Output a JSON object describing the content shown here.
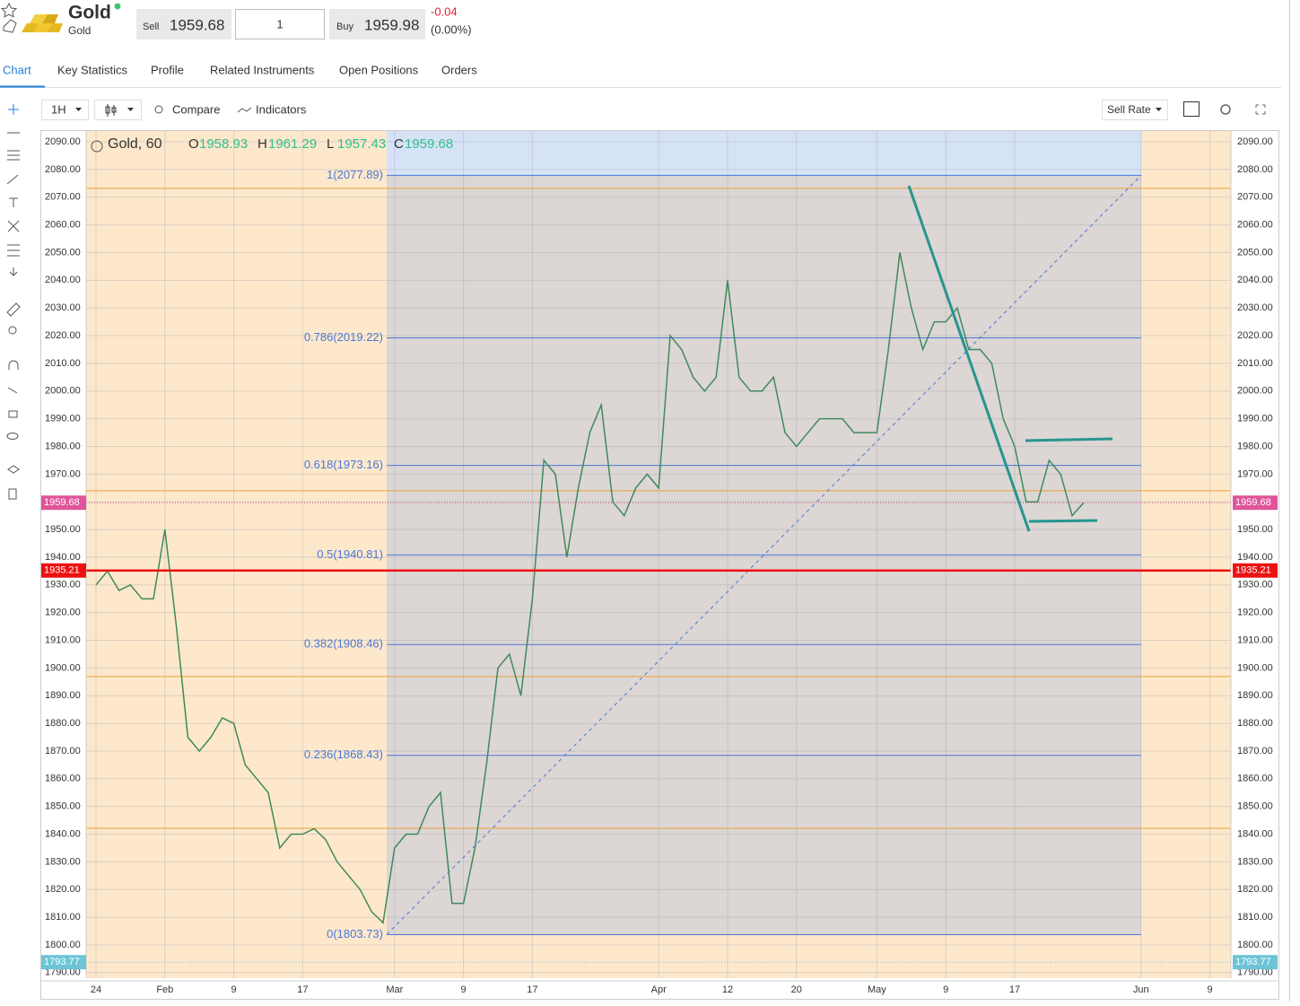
{
  "header": {
    "title": "Gold",
    "subtitle": "Gold",
    "sell_label": "Sell",
    "sell": 1959.68,
    "quantity": 1,
    "buy_label": "Buy",
    "buy": 1959.98,
    "change": -0.04,
    "change_pct": "(0.00%)"
  },
  "tabs": [
    "Chart",
    "Key Statistics",
    "Profile",
    "Related Instruments",
    "Open Positions",
    "Orders"
  ],
  "toolbar": {
    "interval": "1H",
    "compare": "Compare",
    "indicators": "Indicators",
    "rate": "Sell Rate"
  },
  "chart_data": {
    "type": "line",
    "legend": {
      "name": "Gold, 60",
      "fields": [
        {
          "key": "O",
          "value": 1958.93
        },
        {
          "key": "H",
          "value": 1961.29
        },
        {
          "key": "L",
          "value": 1957.43
        },
        {
          "key": "C",
          "value": 1959.68
        }
      ]
    },
    "categories": [
      "24",
      null,
      null,
      null,
      null,
      null,
      "Feb",
      null,
      null,
      null,
      null,
      null,
      "9",
      null,
      null,
      null,
      null,
      null,
      "17",
      null,
      null,
      null,
      null,
      null,
      null,
      null,
      "Mar",
      null,
      null,
      null,
      null,
      null,
      "9",
      null,
      null,
      null,
      null,
      null,
      "17",
      null,
      null,
      null,
      null,
      null,
      null,
      null,
      null,
      null,
      null,
      "Apr",
      null,
      null,
      null,
      null,
      null,
      "12",
      null,
      null,
      null,
      null,
      null,
      "20",
      null,
      null,
      null,
      null,
      null,
      null,
      "May",
      null,
      null,
      null,
      null,
      null,
      "9",
      null,
      null,
      null,
      null,
      null,
      "17",
      null,
      null,
      null,
      null,
      null,
      null,
      null,
      null,
      null,
      null,
      "Jun",
      null,
      null,
      null,
      null,
      null,
      "9",
      null
    ],
    "series": [
      {
        "name": "Gold",
        "color": "#3f8a5c",
        "values": [
          1930,
          1935,
          1928,
          1930,
          1925,
          1925,
          1950,
          1915,
          1875,
          1870,
          1875,
          1882,
          1880,
          1865,
          1860,
          1855,
          1835,
          1840,
          1840,
          1842,
          1838,
          1830,
          1825,
          1820,
          1812,
          1808,
          1835,
          1840,
          1840,
          1850,
          1855,
          1815,
          1815,
          1835,
          1865,
          1900,
          1905,
          1890,
          1925,
          1975,
          1970,
          1940,
          1965,
          1985,
          1995,
          1960,
          1955,
          1965,
          1970,
          1965,
          2020,
          2015,
          2005,
          2000,
          2005,
          2040,
          2005,
          2000,
          2000,
          2005,
          1985,
          1980,
          1985,
          1990,
          1990,
          1990,
          1985,
          1985,
          1985,
          2015,
          2050,
          2030,
          2015,
          2025,
          2025,
          2030,
          2015,
          2015,
          2010,
          1990,
          1980,
          1960,
          1960,
          1975,
          1970,
          1955,
          1959.68,
          null,
          null,
          null,
          null,
          null,
          null,
          null,
          null,
          null,
          null,
          null,
          null
        ]
      }
    ],
    "ylim": [
      1788,
      2093.9
    ],
    "yticks": [
      {
        "value": 1790,
        "label": "1790.00"
      },
      {
        "value": 1800,
        "label": "1800.00"
      },
      {
        "value": 1810,
        "label": "1810.00"
      },
      {
        "value": 1820,
        "label": "1820.00"
      },
      {
        "value": 1830,
        "label": "1830.00"
      },
      {
        "value": 1840,
        "label": "1840.00"
      },
      {
        "value": 1850,
        "label": "1850.00"
      },
      {
        "value": 1860,
        "label": "1860.00"
      },
      {
        "value": 1870,
        "label": "1870.00"
      },
      {
        "value": 1880,
        "label": "1880.00"
      },
      {
        "value": 1890,
        "label": "1890.00"
      },
      {
        "value": 1900,
        "label": "1900.00"
      },
      {
        "value": 1910,
        "label": "1910.00"
      },
      {
        "value": 1920,
        "label": "1920.00"
      },
      {
        "value": 1930,
        "label": "1930.00"
      },
      {
        "value": 1940,
        "label": "1940.00"
      },
      {
        "value": 1950,
        "label": "1950.00"
      },
      {
        "value": 1960,
        "label": "1960.00"
      },
      {
        "value": 1970,
        "label": "1970.00"
      },
      {
        "value": 1980,
        "label": "1980.00"
      },
      {
        "value": 1990,
        "label": "1990.00"
      },
      {
        "value": 2000,
        "label": "2000.00"
      },
      {
        "value": 2010,
        "label": "2010.00"
      },
      {
        "value": 2020,
        "label": "2020.00"
      },
      {
        "value": 2030,
        "label": "2030.00"
      },
      {
        "value": 2040,
        "label": "2040.00"
      },
      {
        "value": 2050,
        "label": "2050.00"
      },
      {
        "value": 2060,
        "label": "2060.00"
      },
      {
        "value": 2070,
        "label": "2070.00"
      },
      {
        "value": 2080,
        "label": "2080.00"
      },
      {
        "value": 2090,
        "label": "2090.00"
      }
    ],
    "grid": true,
    "fib_levels": [
      {
        "value": 2077.89,
        "label": "1(2077.89)"
      },
      {
        "value": 2019.22,
        "label": "0.786(2019.22)"
      },
      {
        "value": 1973.16,
        "label": "0.618(1973.16)"
      },
      {
        "value": 1940.81,
        "label": "0.5(1940.81)"
      },
      {
        "value": 1908.46,
        "label": "0.382(1908.46)"
      },
      {
        "value": 1868.43,
        "label": "0.236(1868.43)"
      },
      {
        "value": 1803.73,
        "label": "0(1803.73)"
      }
    ],
    "fib_color": "#4a78d8",
    "hlines": [
      2073.2,
      1964,
      1896.9,
      1842.1
    ],
    "hline_color": "#e8a33a",
    "price_markers": [
      {
        "value": 1959.68,
        "color": "#e0559a"
      },
      {
        "value": 1935.21,
        "color": "#ee1111"
      },
      {
        "value": 1793.77,
        "color": "#6cc4d6"
      }
    ]
  }
}
